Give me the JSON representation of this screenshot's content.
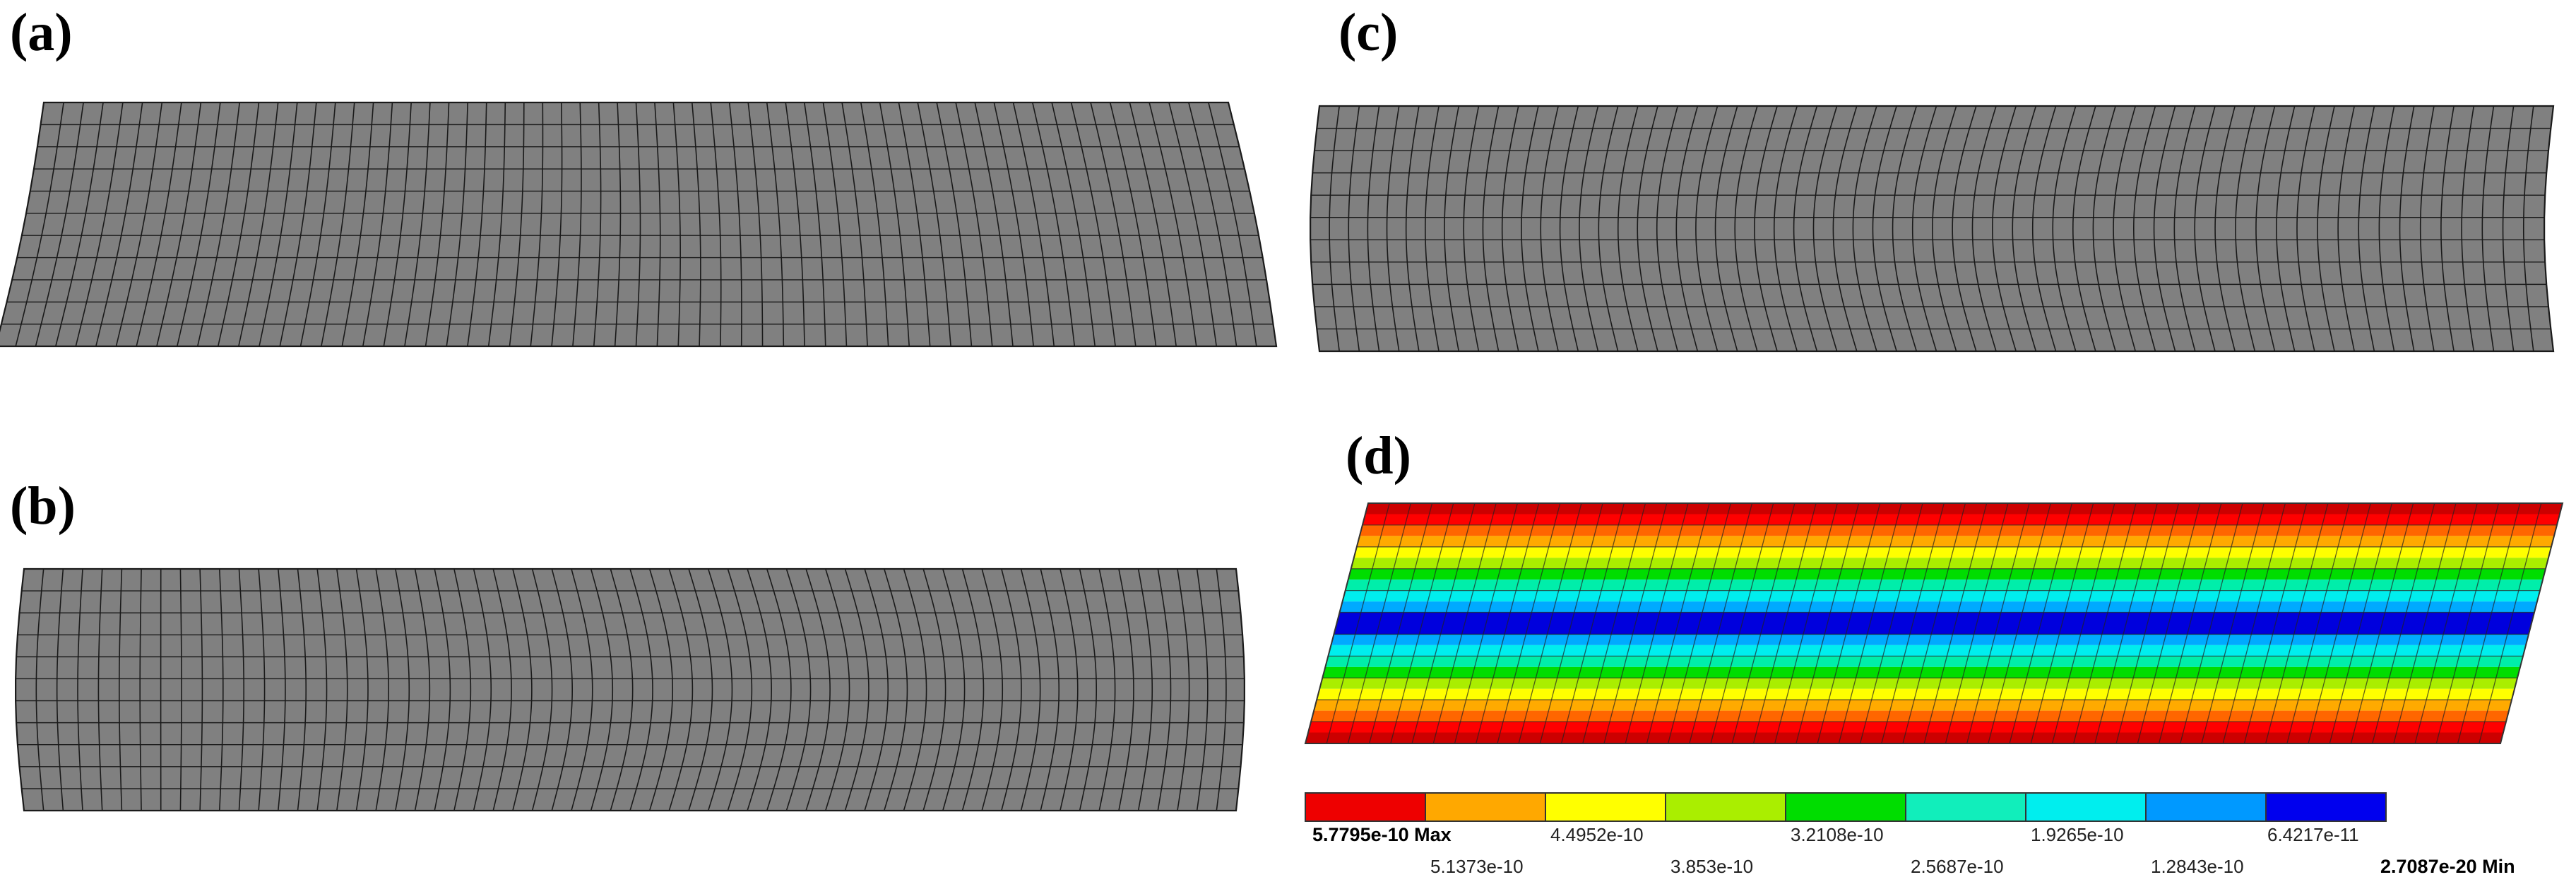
{
  "panels": {
    "a": {
      "label": "(a)"
    },
    "b": {
      "label": "(b)"
    },
    "c": {
      "label": "(c)"
    },
    "d": {
      "label": "(d)"
    }
  },
  "colors": {
    "mesh_fill": "#808080",
    "mesh_line": "#1a1a1a",
    "contour_bands": [
      "#cc0000",
      "#ff0000",
      "#ff6600",
      "#ffaa00",
      "#ffff00",
      "#aaee00",
      "#00dd00",
      "#00eeaa",
      "#00eeee",
      "#00aaff",
      "#0000dd"
    ]
  },
  "legend": {
    "colors": [
      "#ee0000",
      "#ffa800",
      "#ffff00",
      "#aaee00",
      "#00dd00",
      "#11eebb",
      "#00eeee",
      "#0099ff",
      "#0000ee"
    ],
    "top_labels": {
      "max": "5.7795e-10 Max",
      "t1": "4.4952e-10",
      "t2": "3.2108e-10",
      "t3": "1.9265e-10",
      "t4": "6.4217e-11"
    },
    "bottom_labels": {
      "b1": "5.1373e-10",
      "b2": "3.853e-10",
      "b3": "2.5687e-10",
      "b4": "1.2843e-10",
      "min": "2.7087e-20 Min"
    }
  }
}
